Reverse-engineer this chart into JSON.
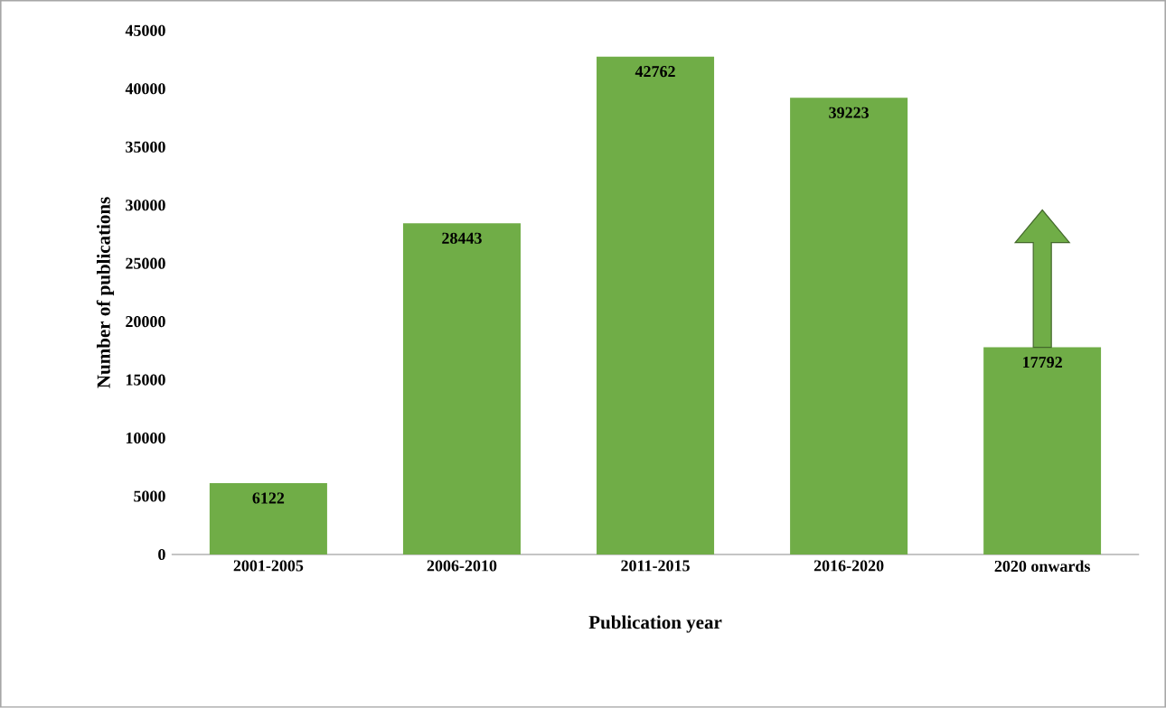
{
  "chart_data": {
    "type": "bar",
    "xlabel": "Publication year",
    "ylabel": "Number of  publications",
    "categories": [
      "2001-2005",
      "2006-2010",
      "2011-2015",
      "2016-2020",
      "2020 onwards"
    ],
    "values": [
      6122,
      28443,
      42762,
      39223,
      17792
    ],
    "color": "#70ad47",
    "ylim": [
      0,
      45000
    ],
    "yticks": [
      0,
      5000,
      10000,
      15000,
      20000,
      25000,
      30000,
      35000,
      40000,
      45000
    ],
    "data_labels": true
  }
}
